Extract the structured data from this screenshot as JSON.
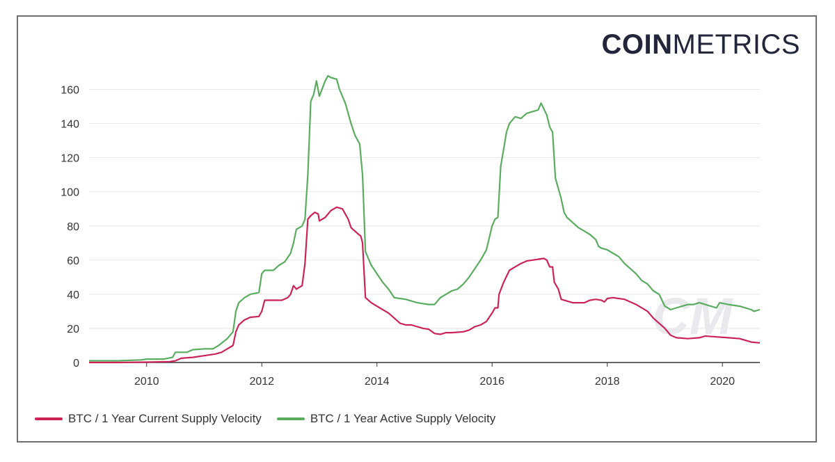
{
  "brand": {
    "bold": "COIN",
    "light": "METRICS"
  },
  "watermark": "CM",
  "colors": {
    "current": "#cc2356",
    "active": "#5aac5f",
    "grid": "#e6e6e6",
    "axis": "#333333"
  },
  "chart_data": {
    "type": "line",
    "title": "",
    "xlabel": "",
    "ylabel": "",
    "xlim": [
      2009.0,
      2020.65
    ],
    "ylim": [
      0,
      170
    ],
    "x_ticks": [
      2010,
      2012,
      2014,
      2016,
      2018,
      2020
    ],
    "y_ticks": [
      0,
      20,
      40,
      60,
      80,
      100,
      120,
      140,
      160
    ],
    "grid": "horizontal",
    "legend_position": "bottom-left",
    "series": [
      {
        "name": "BTC / 1 Year Current Supply Velocity",
        "color": "#cc2356",
        "points": [
          [
            2009.0,
            0
          ],
          [
            2009.5,
            0
          ],
          [
            2010.0,
            0.2
          ],
          [
            2010.4,
            0.5
          ],
          [
            2010.5,
            1
          ],
          [
            2010.6,
            2.5
          ],
          [
            2010.8,
            3
          ],
          [
            2011.0,
            4
          ],
          [
            2011.2,
            5
          ],
          [
            2011.3,
            6
          ],
          [
            2011.4,
            8
          ],
          [
            2011.5,
            10
          ],
          [
            2011.55,
            18
          ],
          [
            2011.6,
            22
          ],
          [
            2011.7,
            25
          ],
          [
            2011.8,
            26.5
          ],
          [
            2011.95,
            27
          ],
          [
            2012.0,
            30
          ],
          [
            2012.05,
            36.5
          ],
          [
            2012.2,
            36.5
          ],
          [
            2012.35,
            36.5
          ],
          [
            2012.45,
            38
          ],
          [
            2012.5,
            40
          ],
          [
            2012.55,
            45
          ],
          [
            2012.6,
            43
          ],
          [
            2012.7,
            45
          ],
          [
            2012.75,
            58
          ],
          [
            2012.8,
            84
          ],
          [
            2012.85,
            86
          ],
          [
            2012.92,
            88
          ],
          [
            2012.98,
            87
          ],
          [
            2013.0,
            83
          ],
          [
            2013.1,
            85
          ],
          [
            2013.2,
            89
          ],
          [
            2013.3,
            91
          ],
          [
            2013.4,
            90
          ],
          [
            2013.5,
            84
          ],
          [
            2013.55,
            79
          ],
          [
            2013.65,
            76
          ],
          [
            2013.72,
            74
          ],
          [
            2013.75,
            70
          ],
          [
            2013.8,
            38
          ],
          [
            2013.9,
            35
          ],
          [
            2014.0,
            33
          ],
          [
            2014.1,
            31
          ],
          [
            2014.2,
            29
          ],
          [
            2014.3,
            26
          ],
          [
            2014.4,
            23
          ],
          [
            2014.5,
            22
          ],
          [
            2014.6,
            22
          ],
          [
            2014.7,
            21
          ],
          [
            2014.8,
            20
          ],
          [
            2014.9,
            19.5
          ],
          [
            2015.0,
            17
          ],
          [
            2015.1,
            16.5
          ],
          [
            2015.2,
            17.5
          ],
          [
            2015.3,
            17.5
          ],
          [
            2015.5,
            18
          ],
          [
            2015.6,
            19
          ],
          [
            2015.7,
            21
          ],
          [
            2015.8,
            22
          ],
          [
            2015.9,
            24
          ],
          [
            2016.0,
            29
          ],
          [
            2016.05,
            32
          ],
          [
            2016.1,
            32
          ],
          [
            2016.12,
            40
          ],
          [
            2016.2,
            47
          ],
          [
            2016.3,
            54
          ],
          [
            2016.4,
            56
          ],
          [
            2016.5,
            58
          ],
          [
            2016.6,
            59.5
          ],
          [
            2016.7,
            60
          ],
          [
            2016.8,
            60.5
          ],
          [
            2016.9,
            61
          ],
          [
            2016.95,
            60
          ],
          [
            2017.0,
            56
          ],
          [
            2017.05,
            56
          ],
          [
            2017.08,
            47
          ],
          [
            2017.15,
            43
          ],
          [
            2017.2,
            37
          ],
          [
            2017.3,
            36
          ],
          [
            2017.4,
            35
          ],
          [
            2017.6,
            35
          ],
          [
            2017.7,
            36.5
          ],
          [
            2017.8,
            37
          ],
          [
            2017.9,
            36.5
          ],
          [
            2017.95,
            35.5
          ],
          [
            2018.0,
            37.5
          ],
          [
            2018.1,
            38
          ],
          [
            2018.3,
            37
          ],
          [
            2018.5,
            34
          ],
          [
            2018.7,
            30
          ],
          [
            2018.8,
            26
          ],
          [
            2018.9,
            23
          ],
          [
            2019.0,
            20
          ],
          [
            2019.1,
            16
          ],
          [
            2019.2,
            14.5
          ],
          [
            2019.4,
            14
          ],
          [
            2019.6,
            14.5
          ],
          [
            2019.7,
            15.5
          ],
          [
            2019.9,
            15
          ],
          [
            2020.1,
            14.5
          ],
          [
            2020.3,
            14
          ],
          [
            2020.5,
            12
          ],
          [
            2020.65,
            11.5
          ]
        ]
      },
      {
        "name": "BTC / 1 Year Active Supply Velocity",
        "color": "#5aac5f",
        "points": [
          [
            2009.0,
            1
          ],
          [
            2009.5,
            1
          ],
          [
            2009.9,
            1.5
          ],
          [
            2010.0,
            2
          ],
          [
            2010.3,
            2
          ],
          [
            2010.45,
            3
          ],
          [
            2010.5,
            6
          ],
          [
            2010.7,
            6
          ],
          [
            2010.8,
            7.5
          ],
          [
            2011.0,
            8
          ],
          [
            2011.15,
            8
          ],
          [
            2011.25,
            10
          ],
          [
            2011.4,
            14
          ],
          [
            2011.5,
            18
          ],
          [
            2011.55,
            30
          ],
          [
            2011.6,
            35
          ],
          [
            2011.7,
            38
          ],
          [
            2011.8,
            40
          ],
          [
            2011.95,
            41
          ],
          [
            2012.0,
            52
          ],
          [
            2012.05,
            54
          ],
          [
            2012.2,
            54
          ],
          [
            2012.3,
            57
          ],
          [
            2012.4,
            59
          ],
          [
            2012.5,
            64
          ],
          [
            2012.55,
            70
          ],
          [
            2012.6,
            78
          ],
          [
            2012.7,
            80
          ],
          [
            2012.75,
            84
          ],
          [
            2012.8,
            110
          ],
          [
            2012.85,
            153
          ],
          [
            2012.9,
            157
          ],
          [
            2012.95,
            165
          ],
          [
            2013.0,
            156
          ],
          [
            2013.1,
            165
          ],
          [
            2013.15,
            168
          ],
          [
            2013.2,
            167
          ],
          [
            2013.3,
            166
          ],
          [
            2013.35,
            160
          ],
          [
            2013.45,
            152
          ],
          [
            2013.55,
            140
          ],
          [
            2013.62,
            133
          ],
          [
            2013.7,
            128
          ],
          [
            2013.75,
            110
          ],
          [
            2013.8,
            65
          ],
          [
            2013.9,
            57
          ],
          [
            2014.0,
            52
          ],
          [
            2014.1,
            47
          ],
          [
            2014.2,
            43
          ],
          [
            2014.3,
            38
          ],
          [
            2014.4,
            37.5
          ],
          [
            2014.5,
            37
          ],
          [
            2014.6,
            36
          ],
          [
            2014.7,
            35
          ],
          [
            2014.8,
            34.5
          ],
          [
            2014.9,
            34
          ],
          [
            2015.0,
            34
          ],
          [
            2015.1,
            38
          ],
          [
            2015.2,
            40
          ],
          [
            2015.3,
            42
          ],
          [
            2015.4,
            43
          ],
          [
            2015.5,
            46
          ],
          [
            2015.6,
            50
          ],
          [
            2015.7,
            55
          ],
          [
            2015.8,
            60
          ],
          [
            2015.9,
            66
          ],
          [
            2016.0,
            80
          ],
          [
            2016.05,
            84
          ],
          [
            2016.1,
            85
          ],
          [
            2016.15,
            115
          ],
          [
            2016.2,
            125
          ],
          [
            2016.25,
            135
          ],
          [
            2016.3,
            140
          ],
          [
            2016.4,
            144
          ],
          [
            2016.5,
            143
          ],
          [
            2016.6,
            146
          ],
          [
            2016.7,
            147
          ],
          [
            2016.8,
            148
          ],
          [
            2016.85,
            152
          ],
          [
            2016.95,
            145
          ],
          [
            2017.0,
            138
          ],
          [
            2017.05,
            135
          ],
          [
            2017.1,
            108
          ],
          [
            2017.2,
            96
          ],
          [
            2017.25,
            88
          ],
          [
            2017.3,
            85
          ],
          [
            2017.4,
            82
          ],
          [
            2017.5,
            79
          ],
          [
            2017.6,
            77
          ],
          [
            2017.7,
            75
          ],
          [
            2017.8,
            72
          ],
          [
            2017.85,
            68
          ],
          [
            2017.9,
            67
          ],
          [
            2018.0,
            66
          ],
          [
            2018.1,
            64
          ],
          [
            2018.2,
            62
          ],
          [
            2018.3,
            58
          ],
          [
            2018.4,
            55
          ],
          [
            2018.5,
            52
          ],
          [
            2018.6,
            48
          ],
          [
            2018.7,
            46
          ],
          [
            2018.8,
            42
          ],
          [
            2018.9,
            40
          ],
          [
            2019.0,
            33
          ],
          [
            2019.1,
            31
          ],
          [
            2019.2,
            32
          ],
          [
            2019.3,
            33
          ],
          [
            2019.4,
            34
          ],
          [
            2019.5,
            34
          ],
          [
            2019.6,
            35
          ],
          [
            2019.7,
            34
          ],
          [
            2019.8,
            33
          ],
          [
            2019.9,
            32
          ],
          [
            2019.95,
            35
          ],
          [
            2020.1,
            34
          ],
          [
            2020.3,
            33
          ],
          [
            2020.5,
            31
          ],
          [
            2020.55,
            30
          ],
          [
            2020.65,
            31
          ]
        ]
      }
    ]
  }
}
